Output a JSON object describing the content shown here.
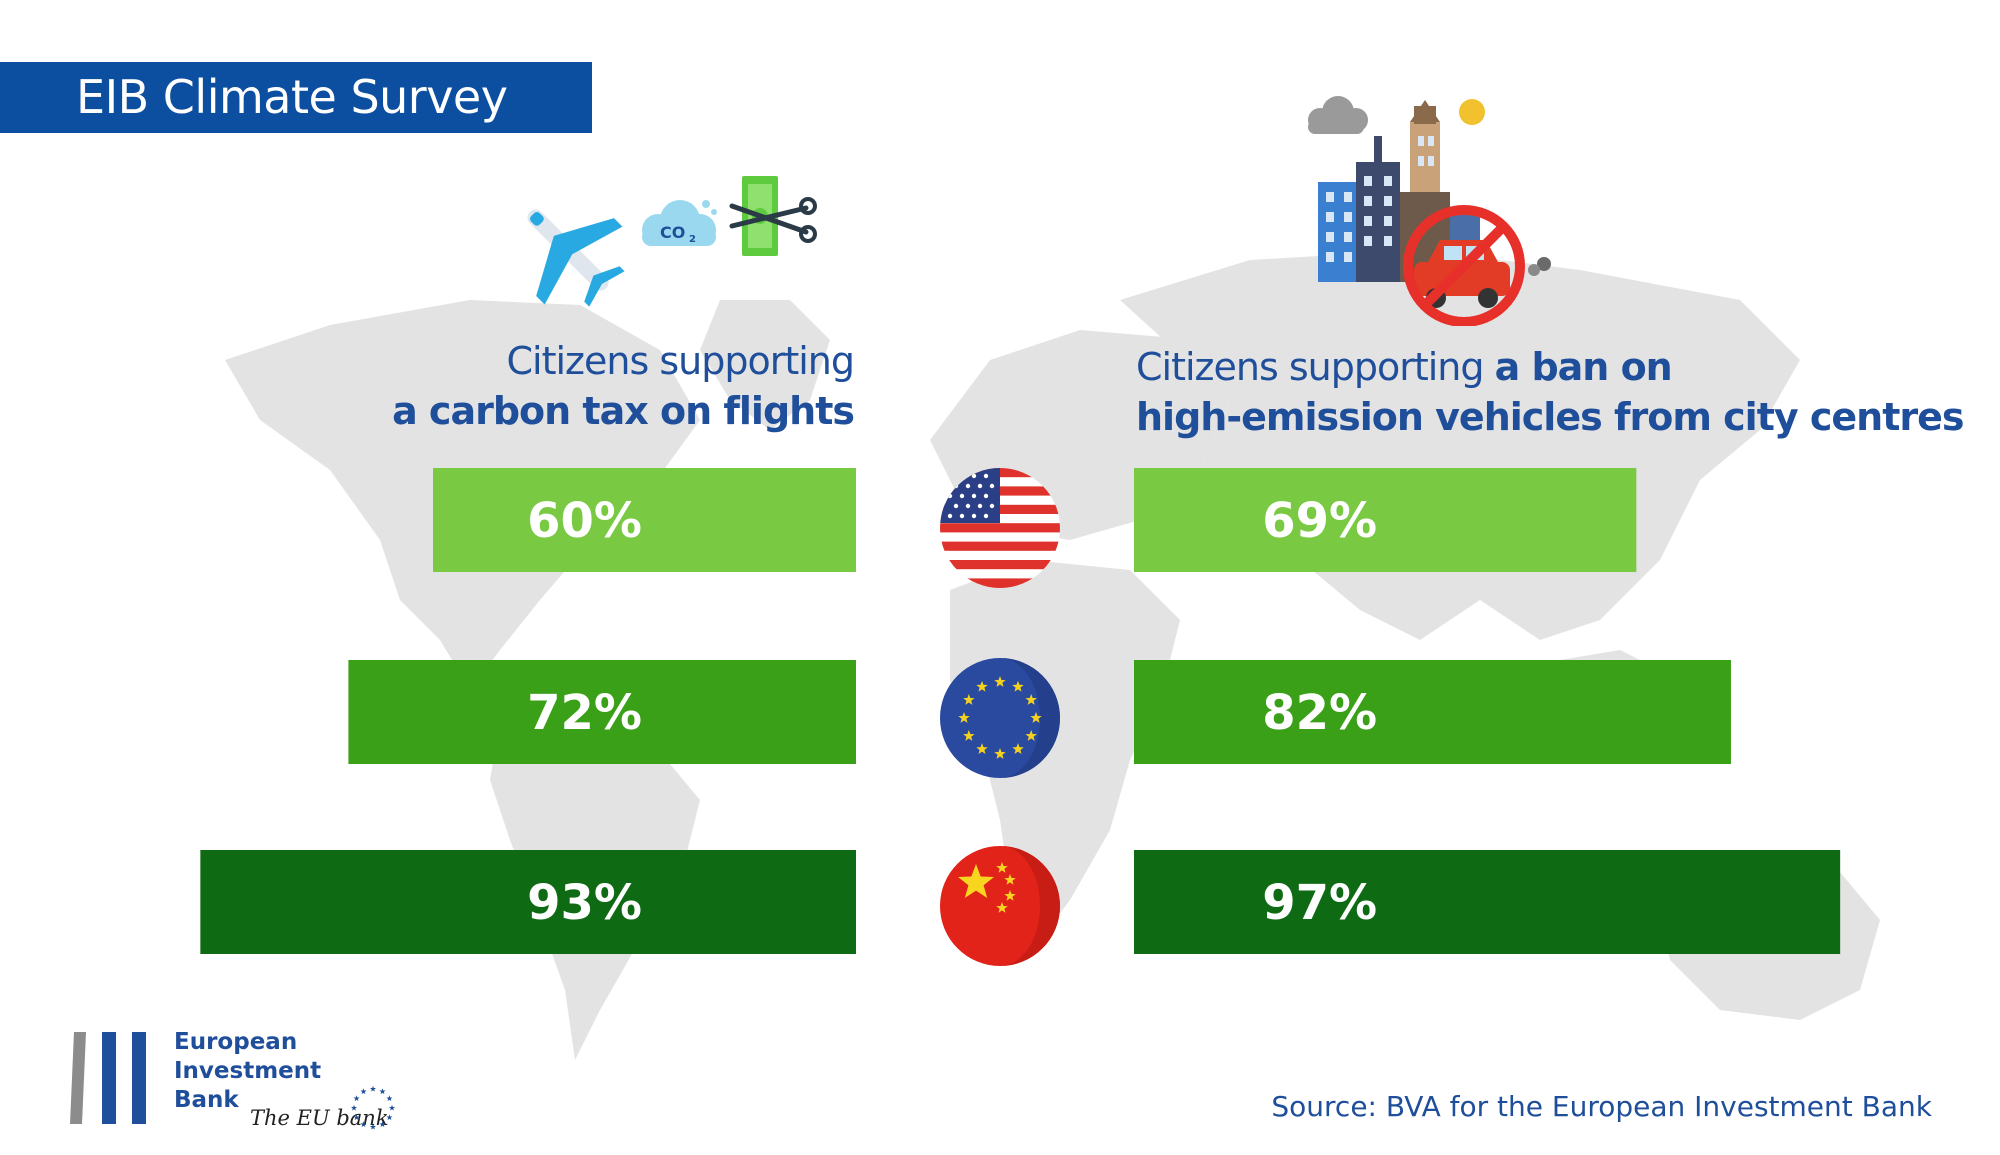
{
  "title": "EIB Climate Survey",
  "headings": {
    "left": {
      "line1": "Citizens supporting",
      "line2": "a carbon tax on flights"
    },
    "right": {
      "line1_normal": "Citizens supporting ",
      "line1_bold": "a ban on",
      "line2": "high-emission vehicles from city centres"
    }
  },
  "chart_data": [
    {
      "type": "bar",
      "orientation": "horizontal",
      "title": "Citizens supporting a carbon tax on flights",
      "categories": [
        "United States",
        "European Union",
        "China"
      ],
      "values": [
        60,
        72,
        93
      ],
      "labels": [
        "60%",
        "72%",
        "93%"
      ],
      "unit": "%",
      "xlim": [
        0,
        100
      ]
    },
    {
      "type": "bar",
      "orientation": "horizontal",
      "title": "Citizens supporting a ban on high-emission vehicles from city centres",
      "categories": [
        "United States",
        "European Union",
        "China"
      ],
      "values": [
        69,
        82,
        97
      ],
      "labels": [
        "69%",
        "82%",
        "97%"
      ],
      "unit": "%",
      "xlim": [
        0,
        100
      ]
    }
  ],
  "colors": {
    "banner": "#0c4ea0",
    "heading": "#1f4e9a",
    "bar_us": "#7ac943",
    "bar_eu": "#3aa017",
    "bar_china": "#0f6a14",
    "map": "#e3e3e3"
  },
  "icons": {
    "flights": [
      "airplane-icon",
      "co2-cloud-icon",
      "cut-money-icon"
    ],
    "vehicles": [
      "city-buildings-icon",
      "no-car-icon"
    ],
    "flags": [
      "us-flag-icon",
      "eu-flag-icon",
      "china-flag-icon"
    ]
  },
  "source": "Source: BVA for the European Investment Bank",
  "logo": {
    "name_lines": [
      "European",
      "Investment",
      "Bank"
    ],
    "tagline": "The EU bank"
  }
}
